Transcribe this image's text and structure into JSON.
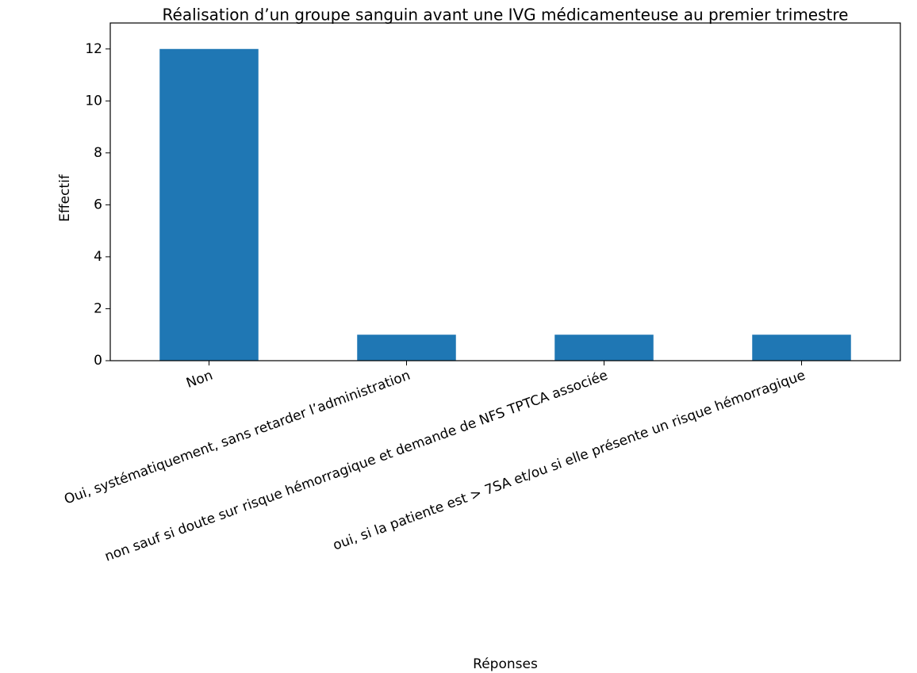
{
  "chart_data": {
    "type": "bar",
    "title": "Réalisation d’un groupe sanguin avant une IVG médicamenteuse au premier trimestre",
    "x_label": "Réponses",
    "y_label": "Effectif",
    "categories": [
      "Non",
      "Oui, systématiquement, sans retarder l’administration",
      "non sauf si doute sur risque hémorragique et demande de NFS TPTCA associée",
      "oui, si la patiente est > 7SA et/ou si elle présente un risque hémorragique"
    ],
    "values": [
      12,
      1,
      1,
      1
    ],
    "color": "#1f77b4",
    "ylim": [
      0,
      13
    ],
    "yticks": [
      0,
      2,
      4,
      6,
      8,
      10,
      12
    ],
    "grid": false
  }
}
